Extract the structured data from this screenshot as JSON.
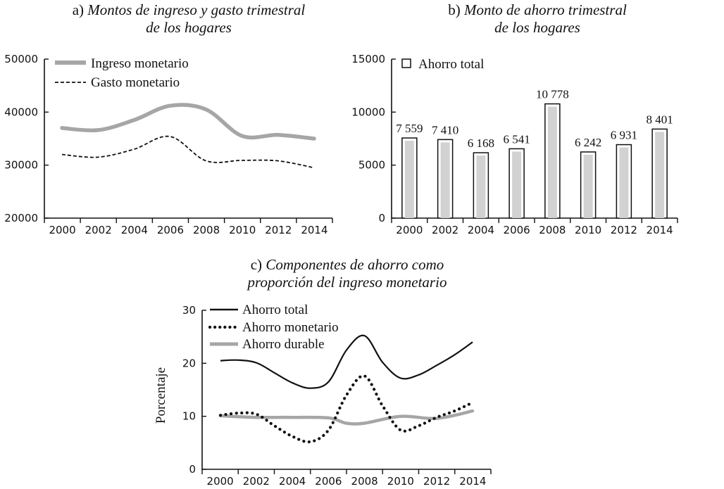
{
  "chart_data": [
    {
      "id": "a",
      "type": "line",
      "title_prefix": "a)",
      "title_lines": [
        "Montos de ingreso y gasto trimestral",
        "de los hogares"
      ],
      "categories": [
        "2000",
        "2002",
        "2004",
        "2006",
        "2008",
        "2010",
        "2012",
        "2014"
      ],
      "x_years": [
        2000,
        2002,
        2004,
        2006,
        2008,
        2010,
        2012,
        2014
      ],
      "yticks": [
        "20000",
        "30000",
        "40000",
        "50000"
      ],
      "ytick_values": [
        20000,
        30000,
        40000,
        50000
      ],
      "ylim": [
        20000,
        50000
      ],
      "xlabel": "",
      "ylabel": "",
      "legend_position": "top-left",
      "series": [
        {
          "name": "Ingreso monetario",
          "style": "thick-gray",
          "color": "#a6a6a6",
          "x": [
            2000,
            2002,
            2004,
            2006,
            2008,
            2010,
            2012,
            2014
          ],
          "values": [
            37000,
            36600,
            38500,
            41200,
            40500,
            35500,
            35700,
            35000
          ]
        },
        {
          "name": "Gasto monetario",
          "style": "dashed-black",
          "color": "#111111",
          "x": [
            2000,
            2002,
            2004,
            2006,
            2008,
            2010,
            2012,
            2014
          ],
          "values": [
            32000,
            31500,
            33000,
            35400,
            30800,
            30900,
            30800,
            29500
          ]
        }
      ]
    },
    {
      "id": "b",
      "type": "bar",
      "title_prefix": "b)",
      "title_lines": [
        "Monto de ahorro trimestral",
        "de los hogares"
      ],
      "categories": [
        "2000",
        "2002",
        "2004",
        "2006",
        "2008",
        "2010",
        "2012",
        "2014"
      ],
      "yticks": [
        "0",
        "5000",
        "10000",
        "15000"
      ],
      "ytick_values": [
        0,
        5000,
        10000,
        15000
      ],
      "ylim": [
        0,
        15000
      ],
      "xlabel": "",
      "ylabel": "",
      "legend_position": "top-left",
      "series": [
        {
          "name": "Ahorro total",
          "values": [
            7559,
            7410,
            6168,
            6541,
            10778,
            6242,
            6931,
            8401
          ],
          "labels": [
            "7 559",
            "7 410",
            "6 168",
            "6 541",
            "10 778",
            "6 242",
            "6 931",
            "8 401"
          ]
        }
      ]
    },
    {
      "id": "c",
      "type": "line",
      "title_prefix": "c)",
      "title_lines": [
        "Componentes de ahorro como",
        "proporción del ingreso monetario"
      ],
      "categories": [
        "2000",
        "2002",
        "2004",
        "2006",
        "2008",
        "2010",
        "2012",
        "2014"
      ],
      "x_years": [
        2000,
        2002,
        2004,
        2006,
        2008,
        2010,
        2012,
        2014
      ],
      "yticks": [
        "0",
        "10",
        "20",
        "30"
      ],
      "ytick_values": [
        0,
        10,
        20,
        30
      ],
      "ylim": [
        0,
        30
      ],
      "xlabel": "",
      "ylabel": "Porcentaje",
      "legend_position": "top-left",
      "series": [
        {
          "name": "Ahorro total",
          "style": "solid-black",
          "color": "#111111",
          "x": [
            2000,
            2001,
            2002,
            2003,
            2004,
            2005,
            2006,
            2007,
            2008,
            2009,
            2010,
            2011,
            2012,
            2013,
            2014
          ],
          "values": [
            20.5,
            20.6,
            20.1,
            18.2,
            16.3,
            15.3,
            16.5,
            22.5,
            25.2,
            20.2,
            17.2,
            17.8,
            19.6,
            21.6,
            24.0
          ]
        },
        {
          "name": "Ahorro monetario",
          "style": "dotted-black",
          "color": "#111111",
          "x": [
            2000,
            2001,
            2002,
            2003,
            2004,
            2005,
            2006,
            2007,
            2008,
            2009,
            2010,
            2011,
            2012,
            2013,
            2014
          ],
          "values": [
            10.2,
            10.6,
            10.4,
            8.2,
            6.2,
            5.2,
            7.4,
            14.0,
            17.6,
            12.0,
            7.4,
            8.2,
            9.8,
            11.0,
            12.6
          ]
        },
        {
          "name": "Ahorro durable",
          "style": "thick-gray",
          "color": "#a6a6a6",
          "x": [
            2000,
            2002,
            2004,
            2006,
            2007,
            2008,
            2010,
            2012,
            2014
          ],
          "values": [
            10.1,
            9.8,
            9.8,
            9.7,
            8.7,
            8.7,
            10.0,
            9.6,
            11.0
          ]
        }
      ]
    }
  ]
}
